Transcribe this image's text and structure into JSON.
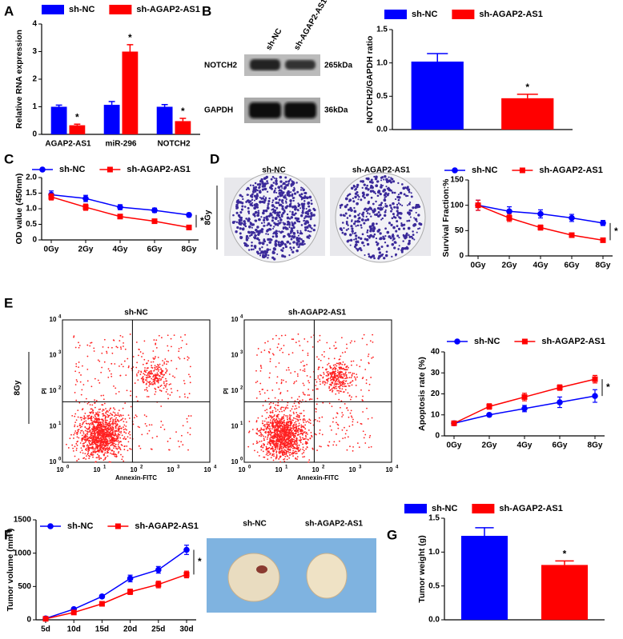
{
  "panel_labels": [
    "A",
    "B",
    "C",
    "D",
    "E",
    "F",
    "G"
  ],
  "blot": {
    "lanes": [
      "sh-NC",
      "sh-AGAP2-AS1"
    ],
    "rows": [
      {
        "protein": "NOTCH2",
        "size": "265kDa"
      },
      {
        "protein": "GAPDH",
        "size": "36kDa"
      }
    ]
  },
  "colony": {
    "lanes": [
      "sh-NC",
      "sh-AGAP2-AS1"
    ],
    "dose": "8Gy"
  },
  "flow": {
    "panels": [
      "sh-NC",
      "sh-AGAP2-AS1"
    ],
    "dose": "8Gy",
    "xlabel": "Annexin-FITC",
    "ylabel": "PI",
    "tick_base": "10",
    "tick_exponents": [
      "0",
      "1",
      "2",
      "3",
      "4"
    ]
  },
  "tumor_photo": {
    "labels": [
      "sh-NC",
      "sh-AGAP2-AS1"
    ]
  },
  "chart_data": [
    {
      "type": "bar",
      "ylabel": "Relative RNA expression",
      "categories": [
        "AGAP2-AS1",
        "miR-296",
        "NOTCH2"
      ],
      "series": [
        {
          "name": "sh-NC",
          "color": "#0000ff",
          "values": [
            1.0,
            1.07,
            1.0
          ],
          "errors": [
            0.06,
            0.12,
            0.08
          ]
        },
        {
          "name": "sh-AGAP2-AS1",
          "color": "#ff0000",
          "values": [
            0.33,
            3.0,
            0.48
          ],
          "errors": [
            0.04,
            0.25,
            0.1
          ]
        }
      ],
      "ylim": [
        0,
        4
      ],
      "yticks": [
        0,
        1,
        2,
        3,
        4
      ],
      "annotations": [
        "*",
        "*",
        "*"
      ]
    },
    {
      "type": "bar",
      "ylabel": "NOTCH2/GAPDH ratio",
      "series": [
        {
          "name": "sh-NC",
          "color": "#0000ff",
          "values": [
            1.02
          ],
          "errors": [
            0.12
          ]
        },
        {
          "name": "sh-AGAP2-AS1",
          "color": "#ff0000",
          "values": [
            0.47
          ],
          "errors": [
            0.06
          ]
        }
      ],
      "ylim": [
        0,
        1.5
      ],
      "yticks": [
        {
          "value": 0,
          "label": "0.0"
        },
        0.5,
        {
          "value": 1,
          "label": "1.0"
        },
        1.5
      ],
      "annotations": [
        "*"
      ]
    },
    {
      "type": "line",
      "ylabel": "OD value (450nm)",
      "categories": [
        "0Gy",
        "2Gy",
        "4Gy",
        "6Gy",
        "8Gy"
      ],
      "series": [
        {
          "name": "sh-NC",
          "color": "#0000ff",
          "marker": "circle",
          "values": [
            1.45,
            1.33,
            1.05,
            0.95,
            0.8
          ],
          "errors": [
            0.12,
            0.1,
            0.08,
            0.07,
            0.06
          ]
        },
        {
          "name": "sh-AGAP2-AS1",
          "color": "#ff0000",
          "marker": "square",
          "values": [
            1.38,
            1.05,
            0.75,
            0.6,
            0.4
          ],
          "errors": [
            0.1,
            0.1,
            0.07,
            0.05,
            0.03
          ]
        }
      ],
      "ylim": [
        0,
        2
      ],
      "yticks": [
        0,
        0.5,
        {
          "value": 1,
          "label": "1.0"
        },
        1.5,
        {
          "value": 2,
          "label": "2.0"
        }
      ],
      "annotations": [
        "*"
      ]
    },
    {
      "type": "line",
      "ylabel": "Survival Fraction:%",
      "categories": [
        "0Gy",
        "2Gy",
        "4Gy",
        "6Gy",
        "8Gy"
      ],
      "series": [
        {
          "name": "sh-NC",
          "color": "#0000ff",
          "marker": "circle",
          "values": [
            100,
            88,
            83,
            75,
            65
          ],
          "errors": [
            10,
            9,
            8,
            7,
            5
          ]
        },
        {
          "name": "sh-AGAP2-AS1",
          "color": "#ff0000",
          "marker": "square",
          "values": [
            100,
            75,
            56,
            41,
            31
          ],
          "errors": [
            10,
            7,
            5,
            3,
            2
          ]
        }
      ],
      "ylim": [
        0,
        150
      ],
      "yticks": [
        0,
        50,
        100,
        150
      ],
      "annotations": [
        "*"
      ]
    },
    {
      "type": "line",
      "ylabel": "Apoptosis rate (%)",
      "categories": [
        "0Gy",
        "2Gy",
        "4Gy",
        "6Gy",
        "8Gy"
      ],
      "series": [
        {
          "name": "sh-NC",
          "color": "#0000ff",
          "marker": "circle",
          "values": [
            6,
            10,
            13,
            16,
            19
          ],
          "errors": [
            0.5,
            0.8,
            1.5,
            2.5,
            3
          ]
        },
        {
          "name": "sh-AGAP2-AS1",
          "color": "#ff0000",
          "marker": "square",
          "values": [
            6,
            14,
            18.5,
            23,
            27
          ],
          "errors": [
            0.5,
            1.3,
            1.8,
            1.3,
            1.8
          ]
        }
      ],
      "ylim": [
        0,
        40
      ],
      "yticks": [
        0,
        10,
        20,
        30,
        40
      ],
      "annotations": [
        "*"
      ]
    },
    {
      "type": "line",
      "ylabel": "Tumor volume (mm³)",
      "categories": [
        "5d",
        "10d",
        "15d",
        "20d",
        "25d",
        "30d"
      ],
      "series": [
        {
          "name": "sh-NC",
          "color": "#0000ff",
          "marker": "circle",
          "values": [
            20,
            160,
            350,
            620,
            750,
            1050
          ],
          "errors": [
            10,
            20,
            25,
            50,
            50,
            70
          ]
        },
        {
          "name": "sh-AGAP2-AS1",
          "color": "#ff0000",
          "marker": "square",
          "values": [
            15,
            110,
            240,
            420,
            530,
            680
          ],
          "errors": [
            10,
            15,
            20,
            40,
            50,
            50
          ]
        }
      ],
      "ylim": [
        0,
        1500
      ],
      "yticks": [
        0,
        500,
        1000,
        1500
      ],
      "annotations": [
        "*"
      ]
    },
    {
      "type": "bar",
      "ylabel": "Tumor weight (g)",
      "series": [
        {
          "name": "sh-NC",
          "color": "#0000ff",
          "values": [
            1.24
          ],
          "errors": [
            0.12
          ]
        },
        {
          "name": "sh-AGAP2-AS1",
          "color": "#ff0000",
          "values": [
            0.81
          ],
          "errors": [
            0.06
          ]
        }
      ],
      "ylim": [
        0,
        1.5
      ],
      "yticks": [
        {
          "value": 0,
          "label": "0.0"
        },
        0.5,
        {
          "value": 1,
          "label": "1.0"
        },
        1.5
      ],
      "annotations": [
        "*"
      ]
    }
  ]
}
